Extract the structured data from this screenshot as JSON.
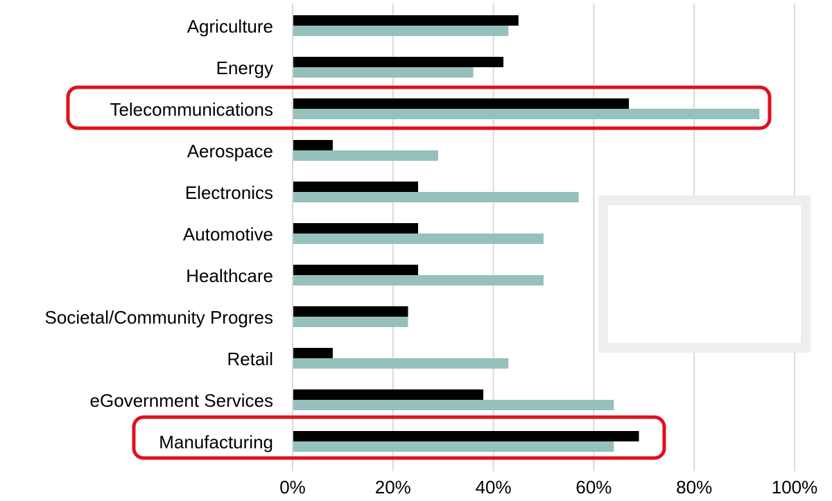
{
  "chart_data": {
    "type": "bar",
    "orientation": "horizontal",
    "categories": [
      "Agriculture",
      "Energy",
      "Telecommunications",
      "Aerospace",
      "Electronics",
      "Automotive",
      "Healthcare",
      "Societal/Community Progres",
      "Retail",
      "eGovernment Services",
      "Manufacturing"
    ],
    "series": [
      {
        "values": [
          45,
          42,
          67,
          8,
          25,
          25,
          25,
          23,
          8,
          38,
          69
        ],
        "color": "#000000"
      },
      {
        "values": [
          43,
          36,
          93,
          29,
          57,
          50,
          50,
          23,
          43,
          64,
          64
        ],
        "color": "#96c0bc"
      }
    ],
    "xlim": [
      0,
      100
    ],
    "xticks": [
      "0%",
      "20%",
      "40%",
      "60%",
      "80%",
      "100%"
    ],
    "grid": true,
    "highlighted_categories": [
      "Telecommunications",
      "Manufacturing"
    ],
    "highlight_color": "#e0101e",
    "legend": "blank box at right"
  }
}
